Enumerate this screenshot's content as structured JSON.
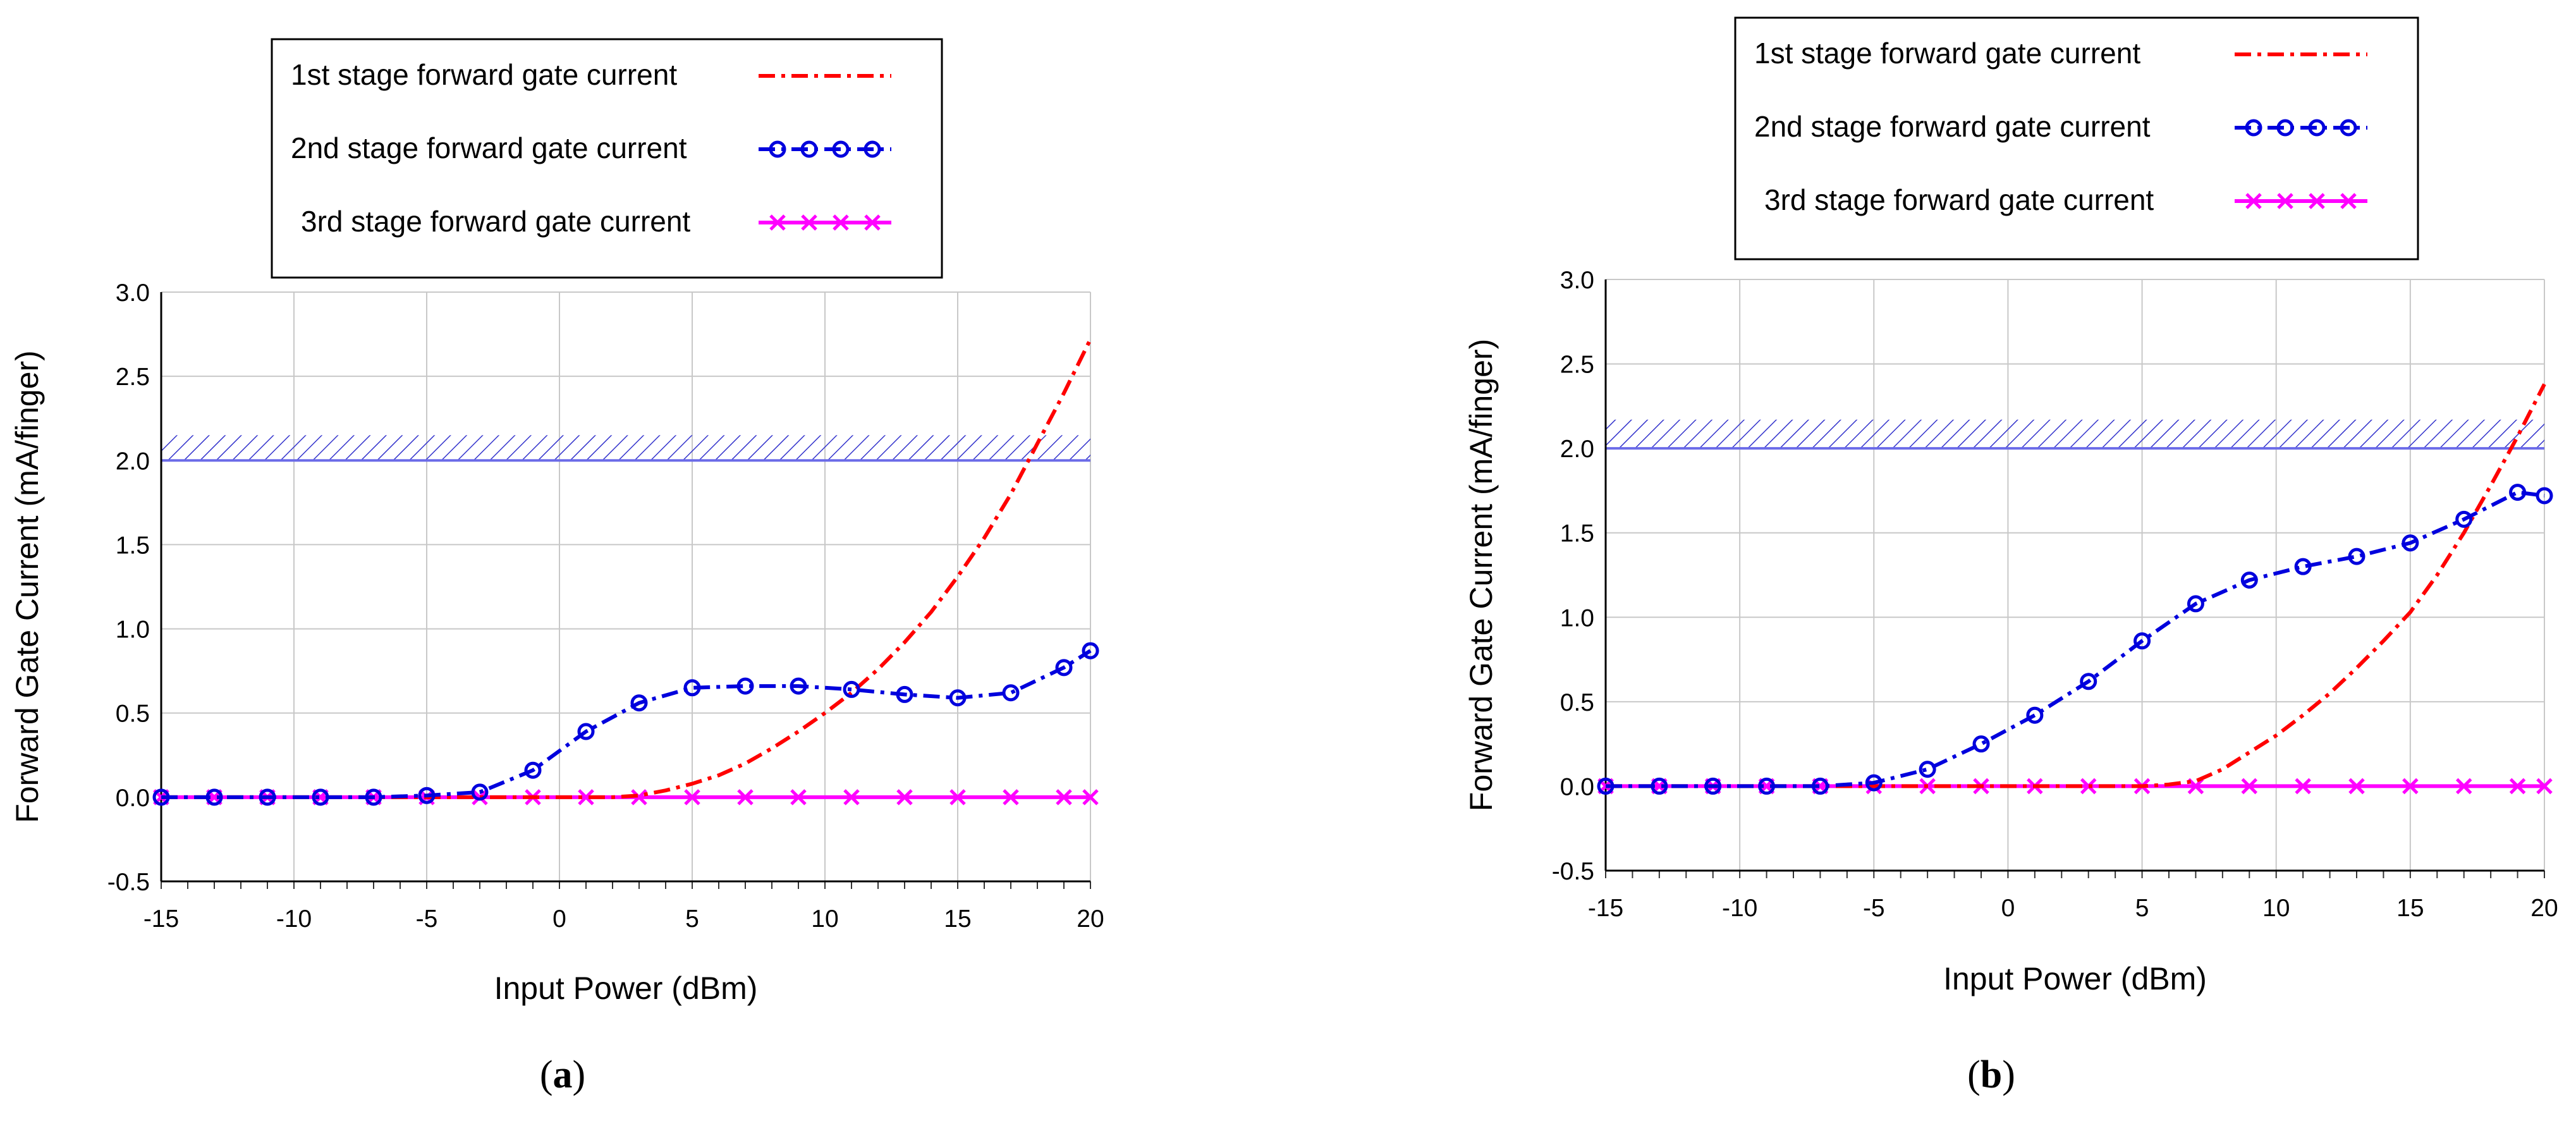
{
  "chart_data": [
    {
      "type": "line",
      "panel_label": "a",
      "xlabel": "Input Power (dBm)",
      "ylabel": "Forward Gate Current (mA/finger)",
      "xlim": [
        -15,
        20
      ],
      "ylim": [
        -0.5,
        3.0
      ],
      "xticks": [
        "-15",
        "-10",
        "-5",
        "0",
        "5",
        "10",
        "15",
        "20"
      ],
      "yticks": [
        "3.0",
        "2.5",
        "2.0",
        "1.5",
        "1.0",
        "0.5",
        "0.0",
        "-0.5"
      ],
      "grid": true,
      "limit_line": {
        "y": 2.0,
        "hatch_top": 2.15
      },
      "series": [
        {
          "name": "1st stage forward gate current",
          "style": "dash-dot",
          "color": "#ff0000",
          "marker": "none",
          "x": [
            -15,
            0,
            2,
            3,
            4,
            5,
            6,
            7,
            8,
            9,
            10,
            11,
            12,
            13,
            14,
            15,
            16,
            17,
            18,
            19,
            20
          ],
          "y": [
            0,
            0,
            0.0,
            0.01,
            0.04,
            0.08,
            0.13,
            0.2,
            0.29,
            0.39,
            0.5,
            0.62,
            0.76,
            0.92,
            1.1,
            1.31,
            1.54,
            1.8,
            2.1,
            2.4,
            2.72
          ]
        },
        {
          "name": "2nd stage forward gate current",
          "style": "dash-dot",
          "color": "#0000dd",
          "marker": "circle",
          "x": [
            -15,
            -13,
            -11,
            -9,
            -7,
            -5,
            -3,
            -1,
            1,
            3,
            5,
            7,
            9,
            11,
            13,
            15,
            17,
            19,
            20
          ],
          "y": [
            0,
            0,
            0,
            0,
            0,
            0.01,
            0.03,
            0.16,
            0.39,
            0.56,
            0.65,
            0.66,
            0.66,
            0.64,
            0.61,
            0.59,
            0.62,
            0.77,
            0.87
          ]
        },
        {
          "name": "3rd stage forward gate current",
          "style": "solid",
          "color": "#ff00ff",
          "marker": "x",
          "x": [
            -15,
            -13,
            -11,
            -9,
            -7,
            -5,
            -3,
            -1,
            1,
            3,
            5,
            7,
            9,
            11,
            13,
            15,
            17,
            19,
            20
          ],
          "y": [
            0,
            0,
            0,
            0,
            0,
            0,
            0,
            0,
            0,
            0,
            0,
            0,
            0,
            0,
            0,
            0,
            0,
            0,
            0
          ]
        }
      ]
    },
    {
      "type": "line",
      "panel_label": "b",
      "xlabel": "Input Power (dBm)",
      "ylabel": "Forward Gate Current (mA/finger)",
      "xlim": [
        -15,
        20
      ],
      "ylim": [
        -0.5,
        3.0
      ],
      "xticks": [
        "-15",
        "-10",
        "-5",
        "0",
        "5",
        "10",
        "15",
        "20"
      ],
      "yticks": [
        "3.0",
        "2.5",
        "2.0",
        "1.5",
        "1.0",
        "0.5",
        "0.0",
        "-0.5"
      ],
      "grid": true,
      "limit_line": {
        "y": 2.0,
        "hatch_top": 2.17
      },
      "series": [
        {
          "name": "1st stage forward gate current",
          "style": "dash-dot",
          "color": "#ff0000",
          "marker": "none",
          "x": [
            -15,
            5,
            6,
            7,
            8,
            9,
            10,
            11,
            12,
            13,
            14,
            15,
            16,
            17,
            18,
            19,
            20
          ],
          "y": [
            0,
            0,
            0.01,
            0.03,
            0.1,
            0.2,
            0.3,
            0.42,
            0.55,
            0.7,
            0.86,
            1.03,
            1.25,
            1.5,
            1.78,
            2.07,
            2.38
          ]
        },
        {
          "name": "2nd stage forward gate current",
          "style": "dash-dot",
          "color": "#0000dd",
          "marker": "circle",
          "x": [
            -15,
            -13,
            -11,
            -9,
            -7,
            -5,
            -3,
            -1,
            1,
            3,
            5,
            7,
            9,
            11,
            13,
            15,
            17,
            19,
            20
          ],
          "y": [
            0,
            0,
            0,
            0,
            0,
            0.02,
            0.1,
            0.25,
            0.42,
            0.62,
            0.86,
            1.08,
            1.22,
            1.3,
            1.36,
            1.44,
            1.58,
            1.74,
            1.72
          ]
        },
        {
          "name": "3rd stage forward gate current",
          "style": "solid",
          "color": "#ff00ff",
          "marker": "x",
          "x": [
            -15,
            -13,
            -11,
            -9,
            -7,
            -5,
            -3,
            -1,
            1,
            3,
            5,
            7,
            9,
            11,
            13,
            15,
            17,
            19,
            20
          ],
          "y": [
            0,
            0,
            0,
            0,
            0,
            0,
            0,
            0,
            0,
            0,
            0,
            0,
            0,
            0,
            0,
            0,
            0,
            0,
            0
          ]
        }
      ]
    }
  ]
}
